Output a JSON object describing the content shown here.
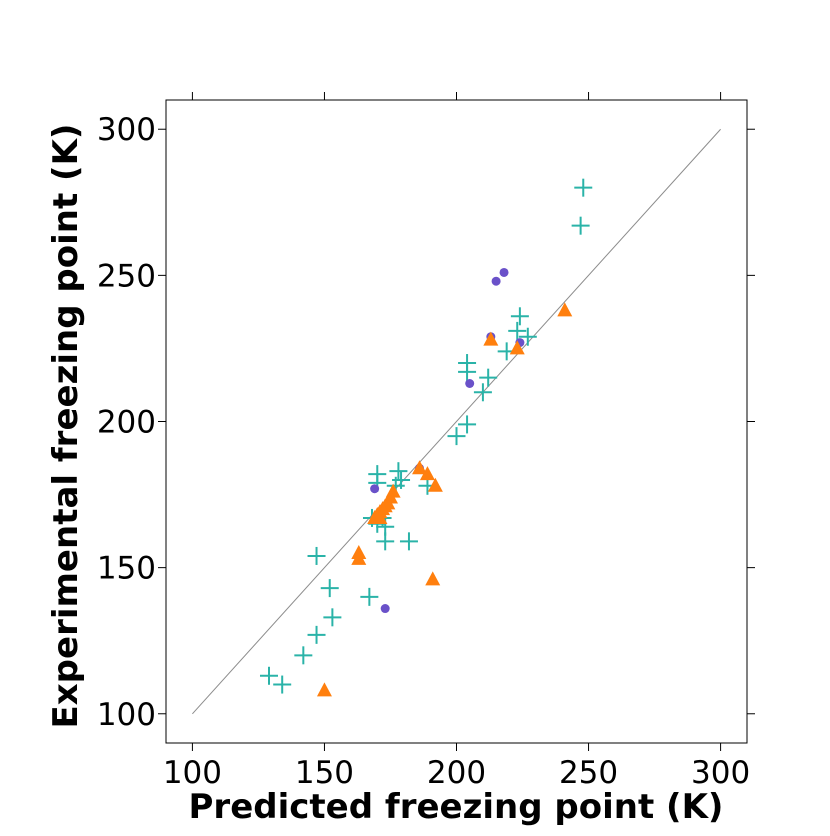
{
  "chart_data": {
    "type": "scatter",
    "title": "",
    "xlabel": "Predicted freezing point (K)",
    "ylabel": "Experimental freezing point (K)",
    "xlim": [
      90,
      310
    ],
    "ylim": [
      90,
      310
    ],
    "xticks": [
      100,
      150,
      200,
      250,
      300
    ],
    "yticks": [
      100,
      150,
      200,
      250,
      300
    ],
    "grid": false,
    "reference_line": {
      "x": [
        100,
        300
      ],
      "y": [
        100,
        300
      ],
      "color": "#8c8c8c"
    },
    "series": [
      {
        "name": "plus markers",
        "marker": "plus",
        "color": "#2ab3a8",
        "points": [
          [
            248,
            280
          ],
          [
            247,
            267
          ],
          [
            224,
            236
          ],
          [
            223,
            231
          ],
          [
            227,
            229
          ],
          [
            219,
            224
          ],
          [
            212,
            215
          ],
          [
            210,
            210
          ],
          [
            204,
            220
          ],
          [
            204,
            217
          ],
          [
            204,
            199
          ],
          [
            200,
            195
          ],
          [
            189,
            178
          ],
          [
            178,
            183
          ],
          [
            179,
            180
          ],
          [
            177,
            178
          ],
          [
            170,
            182
          ],
          [
            170,
            179
          ],
          [
            168,
            167
          ],
          [
            170,
            165
          ],
          [
            173,
            164
          ],
          [
            173,
            159
          ],
          [
            182,
            159
          ],
          [
            147,
            154
          ],
          [
            152,
            143
          ],
          [
            153,
            133
          ],
          [
            147,
            127
          ],
          [
            142,
            120
          ],
          [
            167,
            140
          ],
          [
            129,
            113
          ],
          [
            134,
            110
          ],
          [
            172,
            167
          ]
        ]
      },
      {
        "name": "circle markers",
        "marker": "circle",
        "color": "#6a51c9",
        "points": [
          [
            218,
            251
          ],
          [
            215,
            248
          ],
          [
            213,
            229
          ],
          [
            224,
            227
          ],
          [
            205,
            213
          ],
          [
            169,
            177
          ],
          [
            173,
            136
          ],
          [
            186,
            184
          ]
        ]
      },
      {
        "name": "triangle markers",
        "marker": "triangle",
        "color": "#ff7f0e",
        "points": [
          [
            241,
            238
          ],
          [
            213,
            228
          ],
          [
            223,
            225
          ],
          [
            186,
            184
          ],
          [
            189,
            182
          ],
          [
            192,
            178
          ],
          [
            176,
            176
          ],
          [
            175,
            174
          ],
          [
            174,
            172
          ],
          [
            173,
            171
          ],
          [
            172,
            170
          ],
          [
            171,
            169
          ],
          [
            170,
            168
          ],
          [
            169,
            167
          ],
          [
            171,
            167
          ],
          [
            163,
            155
          ],
          [
            163,
            153
          ],
          [
            191,
            146
          ],
          [
            150,
            108
          ]
        ]
      }
    ]
  }
}
